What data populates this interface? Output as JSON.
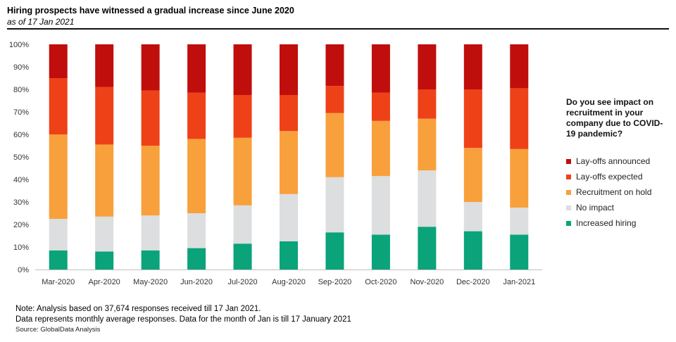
{
  "header": {
    "title": "Hiring prospects have witnessed a gradual increase since June 2020",
    "subtitle": "as of 17 Jan 2021"
  },
  "legend": {
    "title": "Do you see impact on recruitment in your company due to COVID-19 pandemic?"
  },
  "footer": {
    "note_line1": "Note: Analysis based on 37,674 responses received till 17 Jan 2021.",
    "note_line2": "Data represents monthly average responses. Data for the month of Jan is till 17 January 2021",
    "source": "Source: GlobalData Analysis"
  },
  "chart_data": {
    "type": "bar",
    "stacked": true,
    "categories": [
      "Mar-2020",
      "Apr-2020",
      "May-2020",
      "Jun-2020",
      "Jul-2020",
      "Aug-2020",
      "Sep-2020",
      "Oct-2020",
      "Nov-2020",
      "Dec-2020",
      "Jan-2021"
    ],
    "ylim": [
      0,
      100
    ],
    "yticks": [
      "0%",
      "10%",
      "20%",
      "30%",
      "40%",
      "50%",
      "60%",
      "70%",
      "80%",
      "90%",
      "100%"
    ],
    "grid": false,
    "legend_position": "right",
    "series": [
      {
        "name": "Increased hiring",
        "color": "#0aa37a",
        "values": [
          8.5,
          8,
          8.5,
          9.5,
          11.5,
          12.5,
          16.5,
          15.5,
          19,
          17,
          15.5
        ]
      },
      {
        "name": "No impact",
        "color": "#dcdedf",
        "values": [
          14,
          15.5,
          15.5,
          15.5,
          17,
          21,
          24.5,
          26,
          25,
          13,
          12
        ]
      },
      {
        "name": "Recruitment on hold",
        "color": "#f8a03c",
        "values": [
          37.5,
          32,
          31,
          33,
          30,
          28,
          28.5,
          24.5,
          23,
          24,
          26
        ]
      },
      {
        "name": "Lay-offs expected",
        "color": "#ee4118",
        "values": [
          25,
          25.5,
          24.5,
          20.5,
          19,
          16,
          12,
          12.5,
          13,
          26,
          27
        ]
      },
      {
        "name": "Lay-offs announced",
        "color": "#c00e0c",
        "values": [
          15,
          19,
          20.5,
          21.5,
          22.5,
          22.5,
          18.5,
          21.5,
          20,
          20,
          19.5
        ]
      }
    ]
  }
}
